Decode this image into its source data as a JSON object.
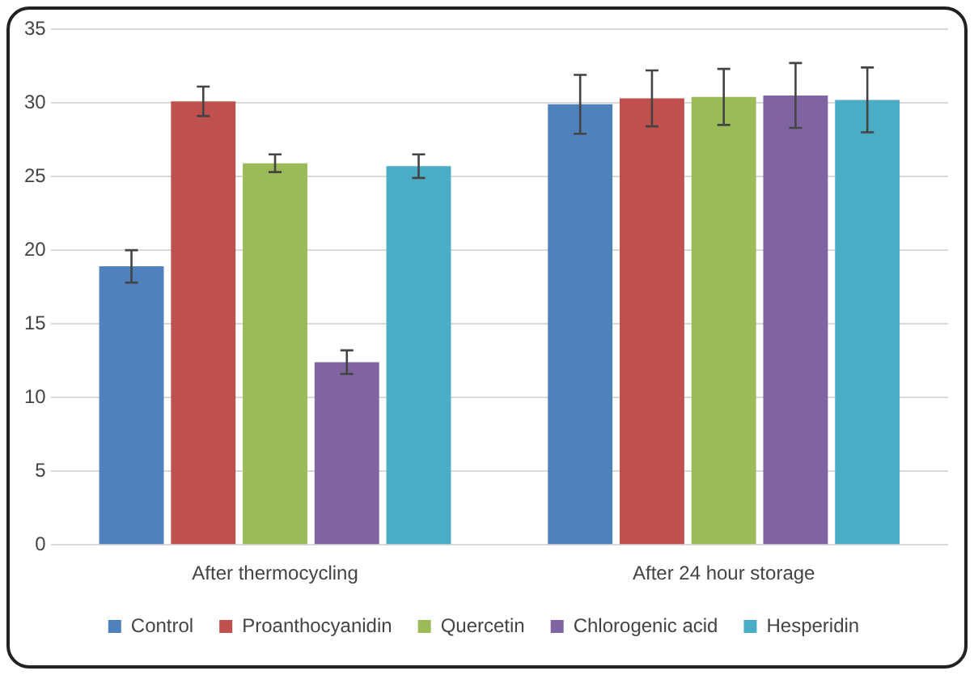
{
  "chart_data": {
    "type": "bar",
    "categories": [
      "After thermocycling",
      "After 24 hour storage"
    ],
    "series": [
      {
        "name": "Control",
        "color": "#4f81bd",
        "values": [
          18.9,
          29.9
        ],
        "errors": [
          1.1,
          2.0
        ]
      },
      {
        "name": "Proanthocyanidin",
        "color": "#c0504d",
        "values": [
          30.1,
          30.3
        ],
        "errors": [
          1.0,
          1.9
        ]
      },
      {
        "name": "Quercetin",
        "color": "#9bbb59",
        "values": [
          25.9,
          30.4
        ],
        "errors": [
          0.6,
          1.9
        ]
      },
      {
        "name": "Chlorogenic acid",
        "color": "#8064a2",
        "values": [
          12.4,
          30.5
        ],
        "errors": [
          0.8,
          2.2
        ]
      },
      {
        "name": "Hesperidin",
        "color": "#4bacc6",
        "values": [
          25.7,
          30.2
        ],
        "errors": [
          0.8,
          2.2
        ]
      }
    ],
    "ylim": [
      0,
      35
    ],
    "yticks": [
      0,
      5,
      10,
      15,
      20,
      25,
      30,
      35
    ],
    "grid": "y",
    "legend": "bottom"
  }
}
